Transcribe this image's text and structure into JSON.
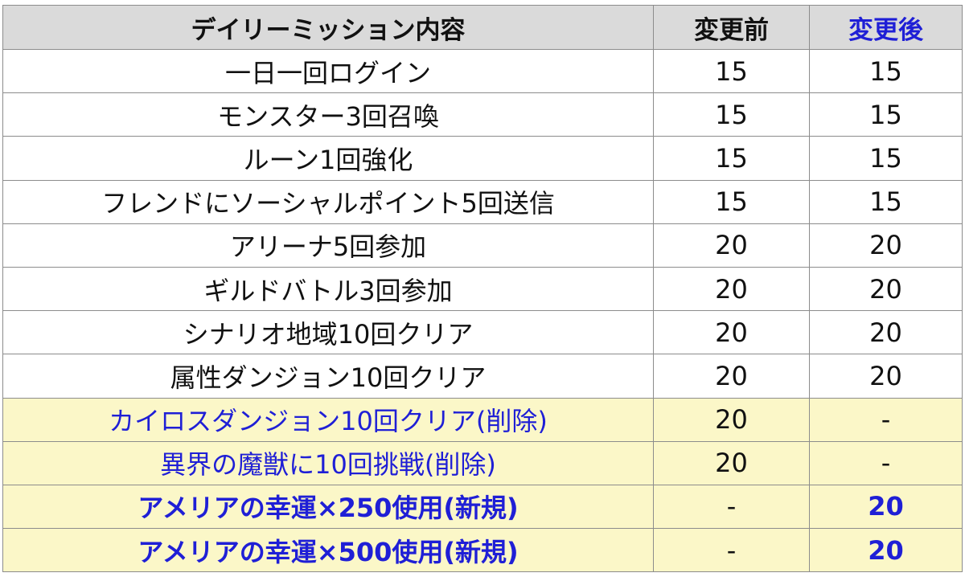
{
  "colors": {
    "header_bg": "#dadada",
    "highlight_bg": "#fbf7c8",
    "accent_blue": "#1f1fd6",
    "border": "#8c8c8c"
  },
  "table": {
    "headers": {
      "mission": "デイリーミッション内容",
      "before": "変更前",
      "after": "変更後"
    },
    "rows": [
      {
        "mission": "一日一回ログイン",
        "before": "15",
        "after": "15",
        "status": "normal"
      },
      {
        "mission": "モンスター3回召喚",
        "before": "15",
        "after": "15",
        "status": "normal"
      },
      {
        "mission": "ルーン1回強化",
        "before": "15",
        "after": "15",
        "status": "normal"
      },
      {
        "mission": "フレンドにソーシャルポイント5回送信",
        "before": "15",
        "after": "15",
        "status": "normal"
      },
      {
        "mission": "アリーナ5回参加",
        "before": "20",
        "after": "20",
        "status": "normal"
      },
      {
        "mission": "ギルドバトル3回参加",
        "before": "20",
        "after": "20",
        "status": "normal"
      },
      {
        "mission": "シナリオ地域10回クリア",
        "before": "20",
        "after": "20",
        "status": "normal"
      },
      {
        "mission": "属性ダンジョン10回クリア",
        "before": "20",
        "after": "20",
        "status": "normal"
      },
      {
        "mission": "カイロスダンジョン10回クリア(削除)",
        "before": "20",
        "after": "-",
        "status": "removed"
      },
      {
        "mission": "異界の魔獣に10回挑戦(削除)",
        "before": "20",
        "after": "-",
        "status": "removed"
      },
      {
        "mission": "アメリアの幸運×250使用(新規)",
        "before": "-",
        "after": "20",
        "status": "added"
      },
      {
        "mission": "アメリアの幸運×500使用(新規)",
        "before": "-",
        "after": "20",
        "status": "added"
      }
    ]
  }
}
